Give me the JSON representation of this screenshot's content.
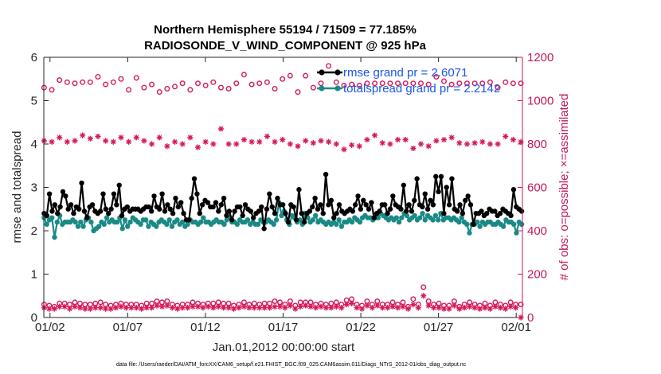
{
  "chart_data": {
    "type": "line",
    "title": "Northern Hemisphere 55194 / 71509 = 77.185%",
    "subtitle": "RADIOSONDE_V_WIND_COMPONENT @ 925 hPa",
    "xlabel": "Jan.01,2012 00:00:00 start",
    "ylabel_left": "rmse and totalspread",
    "ylabel_right": "# of obs: o=possible; ×=assimilated",
    "ylim_left": [
      0,
      6
    ],
    "ylim_right": [
      0,
      1200
    ],
    "xlim_days": [
      0.6,
      31.4
    ],
    "yticks_left": [
      "0",
      "1",
      "2",
      "3",
      "4",
      "5",
      "6"
    ],
    "yticks_right": [
      "0",
      "200",
      "400",
      "600",
      "800",
      "1000",
      "1200"
    ],
    "xticks": [
      {
        "label": "01/02",
        "day": 1
      },
      {
        "label": "01/07",
        "day": 6
      },
      {
        "label": "01/12",
        "day": 11
      },
      {
        "label": "01/17",
        "day": 16
      },
      {
        "label": "01/22",
        "day": 21
      },
      {
        "label": "01/27",
        "day": 26
      },
      {
        "label": "02/01",
        "day": 31
      }
    ],
    "footnote": "data file: /Users/raeder/DAI/ATM_forcXX/CAM6_setup/f.e21.FHIST_BGC.f09_025.CAM6assim.011/Diags_NTrS_2012-01/obs_diag_output.nc",
    "series": [
      {
        "name": "rmse",
        "legend": "rmse grand pr = 2.6071",
        "color": "#000000",
        "axis": "left",
        "values": [
          2.4,
          2.35,
          2.85,
          2.45,
          2.6,
          2.4,
          2.55,
          2.9,
          2.8,
          2.5,
          2.6,
          2.4,
          2.55,
          2.5,
          3.1,
          2.45,
          2.3,
          2.55,
          2.6,
          2.45,
          2.4,
          2.45,
          2.85,
          2.5,
          2.4,
          2.5,
          2.85,
          2.6,
          3.05,
          2.35,
          2.5,
          2.55,
          2.45,
          2.5,
          2.5,
          2.5,
          2.45,
          2.5,
          2.55,
          2.55,
          2.45,
          2.8,
          2.55,
          2.5,
          2.85,
          2.45,
          2.6,
          2.5,
          2.4,
          2.75,
          2.55,
          2.65,
          2.4,
          2.25,
          2.25,
          2.75,
          3.2,
          2.85,
          2.4,
          2.6,
          2.7,
          2.65,
          2.55,
          2.55,
          2.65,
          2.45,
          2.6,
          2.75,
          2.35,
          2.45,
          2.25,
          2.45,
          2.55,
          2.55,
          2.35,
          2.6,
          2.5,
          2.45,
          2.3,
          2.4,
          2.45,
          2.55,
          2.05,
          2.5,
          2.85,
          2.55,
          2.4,
          2.75,
          2.6,
          2.6,
          2.4,
          2.2,
          2.6,
          2.55,
          2.25,
          2.95,
          2.4,
          2.2,
          2.4,
          2.45,
          2.55,
          2.75,
          2.5,
          2.6,
          2.4,
          3.3,
          2.6,
          2.7,
          2.3,
          2.4,
          2.6,
          2.45,
          2.4,
          2.45,
          2.5,
          2.45,
          2.6,
          2.8,
          2.5,
          2.7,
          2.6,
          2.5,
          2.65,
          2.3,
          2.4,
          2.45,
          2.6,
          2.6,
          2.4,
          2.5,
          2.8,
          2.6,
          2.55,
          2.5,
          3.05,
          2.45,
          2.6,
          2.45,
          2.7,
          3.2,
          2.6,
          2.55,
          2.85,
          2.5,
          2.7,
          2.6,
          3.25,
          2.9,
          3.25,
          2.4,
          3.0,
          2.6,
          3.2,
          2.5,
          2.45,
          2.6,
          2.4,
          2.7,
          2.8,
          2.6,
          2.15,
          2.4,
          2.4,
          2.45,
          2.35,
          2.4,
          2.5,
          2.45,
          2.45,
          2.35,
          2.4,
          2.5,
          2.45,
          2.4,
          2.35,
          2.95,
          2.55,
          2.5,
          2.45
        ]
      },
      {
        "name": "totalspread",
        "legend": "totalspread grand pr = 2.2142",
        "color": "#1a8a87",
        "axis": "left",
        "values": [
          2.3,
          2.15,
          2.25,
          2.3,
          1.85,
          2.2,
          2.35,
          2.15,
          2.2,
          2.2,
          2.2,
          2.25,
          2.2,
          2.1,
          2.2,
          2.1,
          2.25,
          2.3,
          2.2,
          2.0,
          2.05,
          2.1,
          2.2,
          2.15,
          2.3,
          2.2,
          2.25,
          2.2,
          2.2,
          2.3,
          2.05,
          2.25,
          2.1,
          2.2,
          2.3,
          2.25,
          2.2,
          2.15,
          2.25,
          2.25,
          2.1,
          2.2,
          2.15,
          2.1,
          2.2,
          2.25,
          2.2,
          2.15,
          2.25,
          2.1,
          2.2,
          2.25,
          2.15,
          2.2,
          2.1,
          2.15,
          2.25,
          2.2,
          2.2,
          2.15,
          2.2,
          2.3,
          2.2,
          2.2,
          2.15,
          2.2,
          2.25,
          2.2,
          2.2,
          2.15,
          2.25,
          2.3,
          2.2,
          2.2,
          2.15,
          2.25,
          2.2,
          2.2,
          2.25,
          2.15,
          2.2,
          2.15,
          2.15,
          2.25,
          2.2,
          2.2,
          2.25,
          2.2,
          2.15,
          2.25,
          2.65,
          2.35,
          2.45,
          2.25,
          2.15,
          2.35,
          2.3,
          2.2,
          2.25,
          2.15,
          2.4,
          2.3,
          2.2,
          2.25,
          2.35,
          2.2,
          2.25,
          2.2,
          2.15,
          2.2,
          2.15,
          2.2,
          2.15,
          2.25,
          2.1,
          2.2,
          2.2,
          2.25,
          2.2,
          2.3,
          2.25,
          2.2,
          2.3,
          2.35,
          2.3,
          2.3,
          2.25,
          2.3,
          2.3,
          2.4,
          2.35,
          2.3,
          2.25,
          2.3,
          2.25,
          2.3,
          2.2,
          2.3,
          2.4,
          2.35,
          2.25,
          2.3,
          2.35,
          2.25,
          2.3,
          2.4,
          2.25,
          2.35,
          2.3,
          2.25,
          2.35,
          2.25,
          2.4,
          2.25,
          2.3,
          2.3,
          2.25,
          2.3,
          2.25,
          2.2,
          2.3,
          2.2,
          2.15,
          1.95,
          2.15,
          2.15,
          2.2,
          2.1,
          2.2,
          2.15,
          2.2,
          2.2,
          2.15,
          2.15,
          2.2,
          2.15,
          2.1,
          2.25,
          2.2,
          2.2,
          2.15,
          1.95,
          2.2,
          2.15
        ]
      },
      {
        "name": "obs possible (night)",
        "marker": "circle",
        "color": "#d6195b",
        "axis": "right",
        "values": [
          1060,
          1050,
          1095,
          1085,
          1080,
          1085,
          1085,
          1110,
          1075,
          1085,
          1100,
          1050,
          1105,
          1060,
          1075,
          1040,
          1055,
          1065,
          1080,
          1050,
          1080,
          1070,
          1085,
          1060,
          1055,
          1080,
          1120,
          1075,
          1080,
          1085,
          1055,
          1100,
          1115,
          1040,
          1115,
          1060,
          1080,
          1160,
          1085,
          1070,
          1075,
          1070,
          1080,
          1080,
          1080,
          1080,
          1080,
          1080,
          1080,
          1080,
          1075,
          1110,
          1090,
          1075,
          1080,
          1080,
          1080,
          1080,
          1085,
          1060,
          1085,
          1080,
          1080
        ]
      },
      {
        "name": "obs assimilated (night)",
        "marker": "asterisk",
        "color": "#d6195b",
        "axis": "right",
        "values": [
          815,
          810,
          830,
          810,
          815,
          840,
          825,
          835,
          815,
          810,
          830,
          810,
          830,
          815,
          800,
          830,
          790,
          810,
          800,
          830,
          785,
          810,
          800,
          870,
          800,
          800,
          820,
          810,
          810,
          835,
          810,
          820,
          800,
          790,
          815,
          805,
          815,
          810,
          800,
          775,
          795,
          790,
          820,
          840,
          805,
          800,
          820,
          820,
          780,
          800,
          790,
          815,
          820,
          830,
          805,
          800,
          805,
          810,
          800,
          800,
          835,
          820,
          810
        ]
      },
      {
        "name": "obs possible (day)",
        "marker": "circle",
        "color": "#d6195b",
        "axis": "right",
        "values": [
          60,
          55,
          50,
          65,
          65,
          60,
          70,
          65,
          60,
          60,
          65,
          70,
          60,
          55,
          60,
          65,
          60,
          60,
          60,
          55,
          65,
          65,
          75,
          70,
          75,
          60,
          55,
          60,
          60,
          70,
          65,
          60,
          65,
          65,
          70,
          65,
          65,
          55,
          60,
          70,
          60,
          65,
          60,
          65,
          65,
          75,
          70,
          60,
          75,
          55,
          70,
          70,
          70,
          60,
          65,
          60,
          65,
          70,
          60,
          80,
          85,
          60,
          55,
          75,
          60,
          75,
          60,
          60,
          70,
          60,
          70,
          50,
          85,
          60,
          140,
          75,
          60,
          65,
          55,
          55,
          75,
          50,
          60,
          70,
          60,
          55,
          65,
          55,
          70,
          60,
          55,
          70,
          60,
          60
        ]
      },
      {
        "name": "obs assimilated (day)",
        "marker": "asterisk",
        "color": "#d6195b",
        "axis": "right",
        "values": [
          45,
          40,
          40,
          50,
          50,
          40,
          50,
          45,
          40,
          40,
          45,
          45,
          40,
          40,
          45,
          50,
          45,
          45,
          45,
          40,
          45,
          45,
          55,
          50,
          55,
          45,
          40,
          45,
          45,
          50,
          50,
          45,
          50,
          45,
          50,
          45,
          45,
          40,
          45,
          50,
          45,
          45,
          45,
          45,
          45,
          50,
          50,
          45,
          55,
          40,
          50,
          55,
          50,
          45,
          50,
          45,
          45,
          50,
          45,
          60,
          65,
          45,
          40,
          55,
          45,
          55,
          45,
          45,
          50,
          45,
          50,
          40,
          60,
          45,
          100,
          55,
          45,
          45,
          40,
          40,
          55,
          40,
          45,
          50,
          45,
          40,
          45,
          40,
          50,
          45,
          40,
          50,
          45,
          0
        ]
      }
    ]
  }
}
